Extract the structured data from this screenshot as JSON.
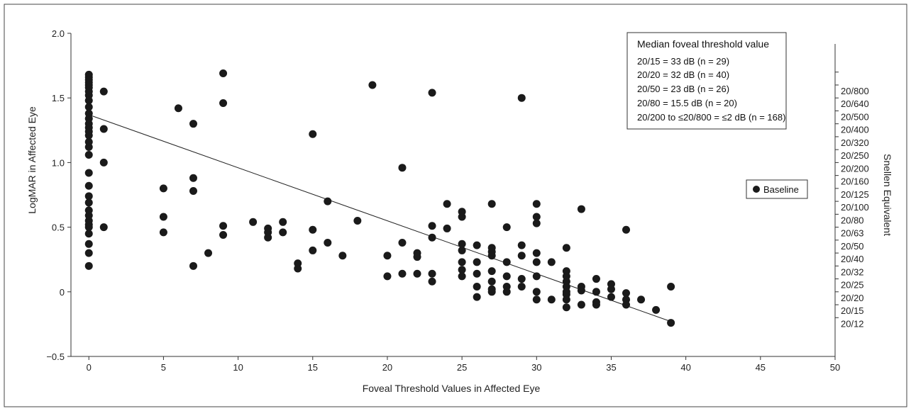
{
  "chart_data": {
    "type": "scatter",
    "xlabel": "Foveal Threshold Values in Affected Eye",
    "ylabel": "LogMAR in Affected Eye",
    "y2label": "Snellen Equivalent",
    "xlim": [
      -1.2,
      50
    ],
    "ylim": [
      -0.5,
      2.0
    ],
    "x_ticks": [
      0,
      5,
      10,
      15,
      20,
      25,
      30,
      35,
      40,
      45,
      50
    ],
    "y_ticks": [
      -0.5,
      0,
      0.5,
      1.0,
      1.5,
      2.0
    ],
    "y_tick_labels": [
      "−0.5",
      "0",
      "0.5",
      "1.0",
      "1.5",
      "2.0"
    ],
    "grid": false,
    "snellen_ticks": [
      {
        "label": "20/800",
        "logmar": 1.6
      },
      {
        "label": "20/640",
        "logmar": 1.5
      },
      {
        "label": "20/500",
        "logmar": 1.4
      },
      {
        "label": "20/400",
        "logmar": 1.3
      },
      {
        "label": "20/320",
        "logmar": 1.2
      },
      {
        "label": "20/250",
        "logmar": 1.1
      },
      {
        "label": "20/200",
        "logmar": 1.0
      },
      {
        "label": "20/160",
        "logmar": 0.9
      },
      {
        "label": "20/125",
        "logmar": 0.8
      },
      {
        "label": "20/100",
        "logmar": 0.7
      },
      {
        "label": "20/80",
        "logmar": 0.6
      },
      {
        "label": "20/63",
        "logmar": 0.5
      },
      {
        "label": "20/50",
        "logmar": 0.4
      },
      {
        "label": "20/40",
        "logmar": 0.3
      },
      {
        "label": "20/32",
        "logmar": 0.2
      },
      {
        "label": "20/25",
        "logmar": 0.1
      },
      {
        "label": "20/20",
        "logmar": 0.0
      },
      {
        "label": "20/15",
        "logmar": -0.1
      },
      {
        "label": "20/12",
        "logmar": -0.2
      }
    ],
    "series": [
      {
        "name": "Baseline",
        "color": "#1a1a1a",
        "points": [
          [
            0,
            1.68
          ],
          [
            0,
            1.66
          ],
          [
            0,
            1.64
          ],
          [
            0,
            1.62
          ],
          [
            0,
            1.6
          ],
          [
            0,
            1.58
          ],
          [
            0,
            1.55
          ],
          [
            0,
            1.52
          ],
          [
            0,
            1.48
          ],
          [
            0,
            1.43
          ],
          [
            0,
            1.38
          ],
          [
            0,
            1.34
          ],
          [
            0,
            1.3
          ],
          [
            0,
            1.27
          ],
          [
            0,
            1.24
          ],
          [
            0,
            1.21
          ],
          [
            0,
            1.16
          ],
          [
            0,
            1.12
          ],
          [
            0,
            1.06
          ],
          [
            0,
            0.92
          ],
          [
            0,
            0.82
          ],
          [
            0,
            0.74
          ],
          [
            0,
            0.69
          ],
          [
            0,
            0.63
          ],
          [
            0,
            0.59
          ],
          [
            0,
            0.55
          ],
          [
            0,
            0.52
          ],
          [
            0,
            0.5
          ],
          [
            0,
            0.45
          ],
          [
            0,
            0.37
          ],
          [
            0,
            0.3
          ],
          [
            0,
            0.2
          ],
          [
            1,
            1.55
          ],
          [
            1,
            1.26
          ],
          [
            1,
            1.0
          ],
          [
            1,
            0.5
          ],
          [
            5,
            0.8
          ],
          [
            5,
            0.58
          ],
          [
            5,
            0.46
          ],
          [
            6,
            1.42
          ],
          [
            7,
            1.3
          ],
          [
            7,
            0.88
          ],
          [
            7,
            0.78
          ],
          [
            7,
            0.2
          ],
          [
            8,
            0.3
          ],
          [
            9,
            1.69
          ],
          [
            9,
            1.46
          ],
          [
            9,
            0.51
          ],
          [
            9,
            0.44
          ],
          [
            11,
            0.54
          ],
          [
            12,
            0.49
          ],
          [
            12,
            0.46
          ],
          [
            12,
            0.42
          ],
          [
            13,
            0.54
          ],
          [
            13,
            0.46
          ],
          [
            14,
            0.22
          ],
          [
            14,
            0.18
          ],
          [
            15,
            1.22
          ],
          [
            15,
            0.48
          ],
          [
            15,
            0.32
          ],
          [
            16,
            0.7
          ],
          [
            16,
            0.38
          ],
          [
            17,
            0.28
          ],
          [
            18,
            0.55
          ],
          [
            19,
            1.6
          ],
          [
            20,
            0.28
          ],
          [
            20,
            0.12
          ],
          [
            21,
            0.96
          ],
          [
            21,
            0.38
          ],
          [
            21,
            0.14
          ],
          [
            22,
            0.3
          ],
          [
            22,
            0.27
          ],
          [
            22,
            0.14
          ],
          [
            23,
            1.54
          ],
          [
            23,
            0.51
          ],
          [
            23,
            0.42
          ],
          [
            23,
            0.14
          ],
          [
            23,
            0.08
          ],
          [
            24,
            0.68
          ],
          [
            24,
            0.49
          ],
          [
            25,
            0.62
          ],
          [
            25,
            0.58
          ],
          [
            25,
            0.37
          ],
          [
            25,
            0.32
          ],
          [
            25,
            0.23
          ],
          [
            25,
            0.17
          ],
          [
            25,
            0.12
          ],
          [
            26,
            0.36
          ],
          [
            26,
            0.23
          ],
          [
            26,
            0.14
          ],
          [
            26,
            0.04
          ],
          [
            26,
            -0.04
          ],
          [
            27,
            0.68
          ],
          [
            27,
            0.34
          ],
          [
            27,
            0.31
          ],
          [
            27,
            0.28
          ],
          [
            27,
            0.16
          ],
          [
            27,
            0.08
          ],
          [
            27,
            0.02
          ],
          [
            27,
            0.0
          ],
          [
            28,
            0.5
          ],
          [
            28,
            0.23
          ],
          [
            28,
            0.12
          ],
          [
            28,
            0.04
          ],
          [
            28,
            0.0
          ],
          [
            29,
            1.5
          ],
          [
            29,
            0.36
          ],
          [
            29,
            0.28
          ],
          [
            29,
            0.1
          ],
          [
            29,
            0.04
          ],
          [
            30,
            0.68
          ],
          [
            30,
            0.58
          ],
          [
            30,
            0.53
          ],
          [
            30,
            0.3
          ],
          [
            30,
            0.23
          ],
          [
            30,
            0.12
          ],
          [
            30,
            0.0
          ],
          [
            30,
            -0.06
          ],
          [
            31,
            0.23
          ],
          [
            31,
            -0.06
          ],
          [
            32,
            0.34
          ],
          [
            32,
            0.16
          ],
          [
            32,
            0.12
          ],
          [
            32,
            0.08
          ],
          [
            32,
            0.04
          ],
          [
            32,
            0.0
          ],
          [
            32,
            -0.02
          ],
          [
            32,
            -0.06
          ],
          [
            32,
            -0.12
          ],
          [
            33,
            0.64
          ],
          [
            33,
            0.04
          ],
          [
            33,
            0.01
          ],
          [
            33,
            -0.1
          ],
          [
            34,
            0.1
          ],
          [
            34,
            0.0
          ],
          [
            34,
            -0.08
          ],
          [
            34,
            -0.1
          ],
          [
            35,
            0.06
          ],
          [
            35,
            0.02
          ],
          [
            35,
            -0.04
          ],
          [
            36,
            0.48
          ],
          [
            36,
            -0.01
          ],
          [
            36,
            -0.06
          ],
          [
            36,
            -0.1
          ],
          [
            37,
            -0.06
          ],
          [
            38,
            -0.14
          ],
          [
            39,
            0.04
          ],
          [
            39,
            -0.24
          ]
        ]
      }
    ],
    "trendline": {
      "x": [
        0,
        39
      ],
      "y": [
        1.37,
        -0.23
      ]
    },
    "info_box": {
      "title": "Median foveal threshold value",
      "lines": [
        "20/15 = 33 dB (n = 29)",
        "20/20 = 32 dB (n = 40)",
        "20/50 = 23 dB (n = 26)",
        "20/80 = 15.5 dB (n = 20)",
        "20/200 to ≤20/800 = ≤2 dB (n = 168)"
      ]
    },
    "legend": {
      "position": "right",
      "label": "Baseline"
    }
  }
}
